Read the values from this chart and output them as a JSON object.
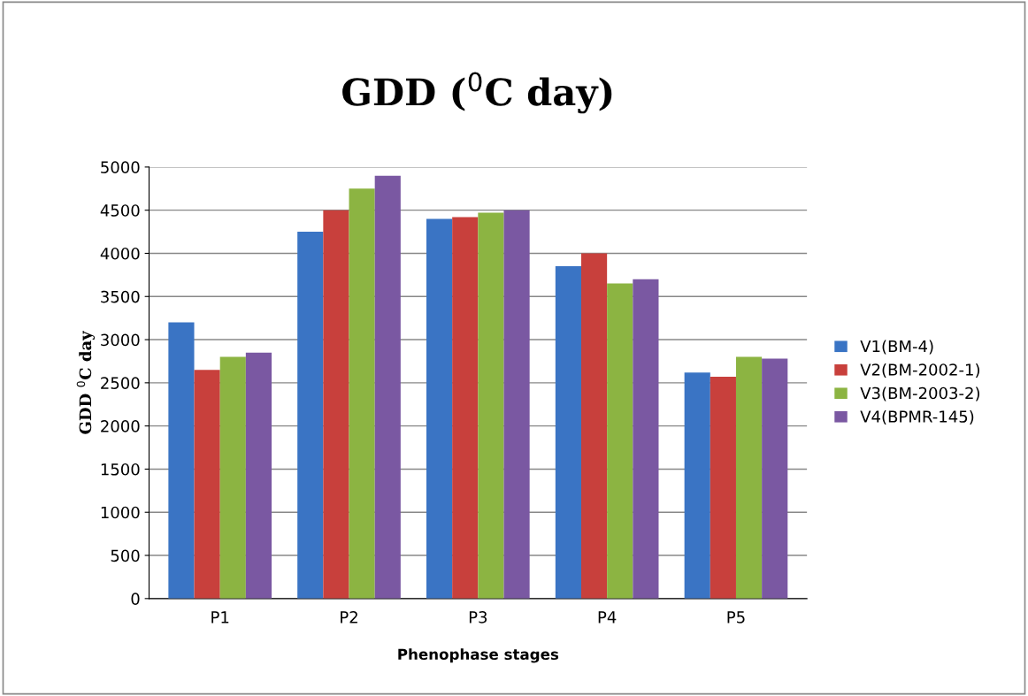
{
  "chart_data": {
    "type": "bar",
    "title": "GDD ($^{0}$C day)",
    "xlabel": "Phenophase stages",
    "ylabel": "GDD $^{0}$C day",
    "categories": [
      "P1",
      "P2",
      "P3",
      "P4",
      "P5"
    ],
    "series": [
      {
        "name": "V1(BM-4)",
        "color": "#3a74c4",
        "values": [
          3200,
          4250,
          4400,
          3850,
          2620
        ]
      },
      {
        "name": "V2(BM-2002-1)",
        "color": "#c8403c",
        "values": [
          2650,
          4500,
          4420,
          4000,
          2570
        ]
      },
      {
        "name": "V3(BM-2003-2)",
        "color": "#8cb442",
        "values": [
          2800,
          4750,
          4470,
          3650,
          2800
        ]
      },
      {
        "name": "V4(BPMR-145)",
        "color": "#7a58a2",
        "values": [
          2850,
          4900,
          4500,
          3700,
          2780
        ]
      }
    ],
    "ylim": [
      0,
      5000
    ],
    "yticks": [
      0,
      500,
      1000,
      1500,
      2000,
      2500,
      3000,
      3500,
      4000,
      4500,
      5000
    ],
    "grid": "y",
    "legend": "right"
  }
}
